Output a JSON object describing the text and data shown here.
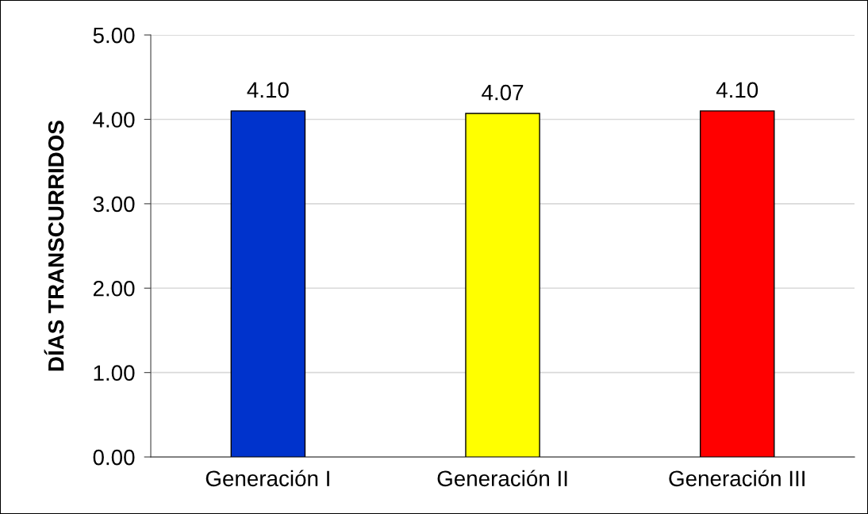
{
  "chart_data": {
    "type": "bar",
    "ylabel": "DÍAS TRANSCURRIDOS",
    "categories": [
      "Generación I",
      "Generación II",
      "Generación III"
    ],
    "values": [
      4.1,
      4.07,
      4.1
    ],
    "colors": [
      "#0033cc",
      "#ffff00",
      "#ff0000"
    ],
    "value_labels": [
      "4.10",
      "4.07",
      "4.10"
    ],
    "ylim": [
      0,
      5
    ],
    "yticks": [
      {
        "value": 0,
        "label": "0.00"
      },
      {
        "value": 1,
        "label": "1.00"
      },
      {
        "value": 2,
        "label": "2.00"
      },
      {
        "value": 3,
        "label": "3.00"
      },
      {
        "value": 4,
        "label": "4.00"
      },
      {
        "value": 5,
        "label": "5.00"
      }
    ],
    "grid": "y",
    "legend": false
  }
}
